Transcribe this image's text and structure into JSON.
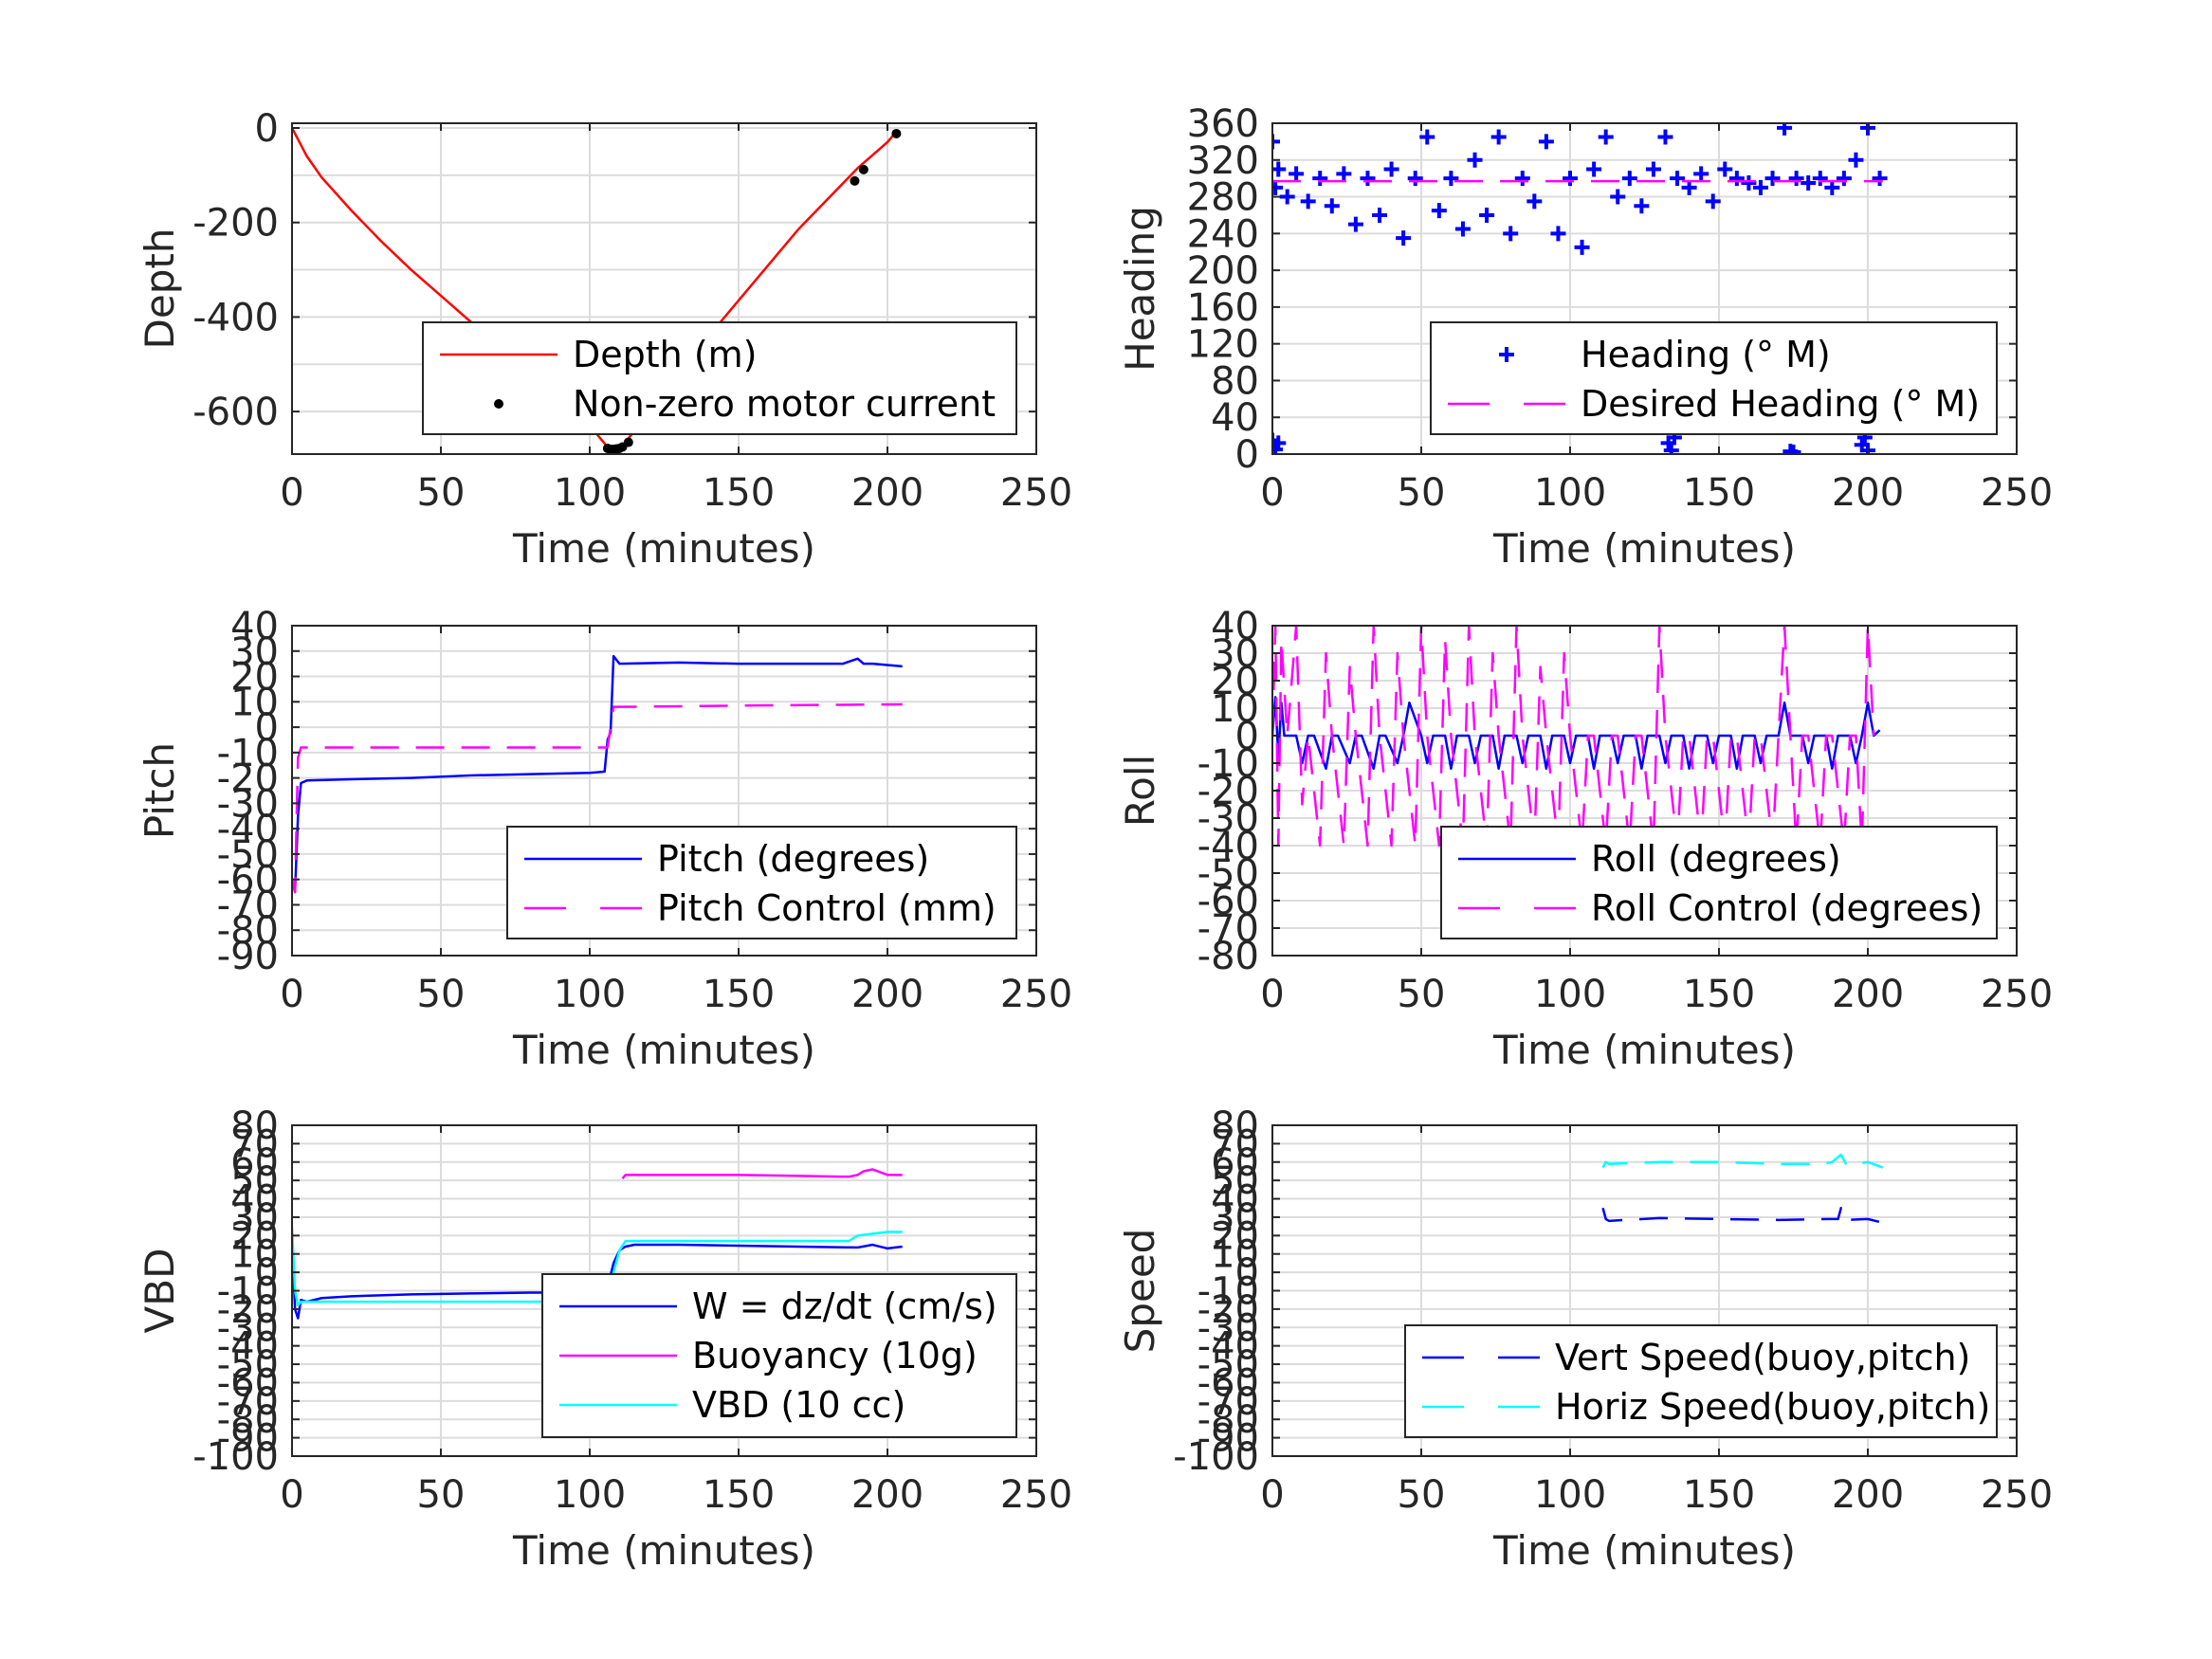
{
  "chart_data": [
    {
      "id": "depth",
      "type": "line",
      "xlabel": "Time (minutes)",
      "ylabel": "Depth",
      "xlim": [
        0,
        250
      ],
      "ylim": [
        -690,
        10
      ],
      "xticks": [
        0,
        50,
        100,
        150,
        200,
        250
      ],
      "yticks": [
        0,
        -200,
        -400,
        -600
      ],
      "ygrid": [
        0,
        -100,
        -200,
        -300,
        -400,
        -500,
        -600
      ],
      "legend_placement": "lower-right",
      "series": [
        {
          "name": "Depth (m)",
          "style": "line",
          "color": "#ff0000",
          "x": [
            0,
            5,
            10,
            20,
            30,
            40,
            50,
            60,
            70,
            80,
            90,
            100,
            106,
            108,
            110,
            112,
            120,
            130,
            140,
            150,
            160,
            170,
            180,
            190,
            200,
            203
          ],
          "y": [
            0,
            -60,
            -105,
            -175,
            -240,
            -300,
            -355,
            -410,
            -460,
            -515,
            -570,
            -630,
            -675,
            -680,
            -678,
            -665,
            -600,
            -515,
            -440,
            -365,
            -290,
            -215,
            -150,
            -85,
            -30,
            -8
          ]
        },
        {
          "name": "Non-zero motor current",
          "style": "dots",
          "color": "#000000",
          "x": [
            106,
            107,
            108,
            109,
            110,
            111,
            113,
            189,
            192,
            203
          ],
          "y": [
            -678,
            -680,
            -680,
            -679,
            -678,
            -675,
            -665,
            -112,
            -88,
            -12
          ]
        }
      ]
    },
    {
      "id": "heading",
      "type": "scatter",
      "xlabel": "Time (minutes)",
      "ylabel": "Heading",
      "xlim": [
        0,
        250
      ],
      "ylim": [
        0,
        360
      ],
      "xticks": [
        0,
        50,
        100,
        150,
        200,
        250
      ],
      "yticks": [
        0,
        40,
        80,
        120,
        160,
        200,
        240,
        280,
        320,
        360
      ],
      "ygrid": [
        0,
        40,
        80,
        120,
        160,
        200,
        240,
        280,
        320,
        360
      ],
      "legend_placement": "lower-right",
      "series": [
        {
          "name": "Heading (° M)",
          "style": "plus",
          "color": "#0000ff",
          "x": [
            0,
            1,
            2,
            5,
            8,
            12,
            16,
            20,
            24,
            28,
            32,
            36,
            40,
            44,
            48,
            52,
            56,
            60,
            64,
            68,
            72,
            76,
            80,
            84,
            88,
            92,
            96,
            100,
            104,
            108,
            112,
            116,
            120,
            124,
            128,
            132,
            136,
            140,
            144,
            148,
            152,
            156,
            160,
            164,
            168,
            172,
            176,
            180,
            184,
            188,
            192,
            196,
            200,
            204
          ],
          "y": [
            340,
            290,
            310,
            280,
            305,
            275,
            300,
            270,
            305,
            250,
            300,
            260,
            310,
            235,
            300,
            345,
            265,
            300,
            245,
            320,
            260,
            345,
            240,
            300,
            275,
            340,
            240,
            300,
            225,
            310,
            345,
            280,
            300,
            270,
            310,
            345,
            300,
            290,
            305,
            275,
            310,
            300,
            295,
            290,
            300,
            355,
            300,
            295,
            300,
            290,
            300,
            320,
            355,
            300
          ]
        },
        {
          "name": "",
          "style": "plus",
          "color": "#0000ff",
          "x": [
            0,
            1,
            2,
            133,
            134,
            135,
            174,
            175,
            198,
            199,
            200
          ],
          "y": [
            15,
            5,
            12,
            12,
            4,
            18,
            3,
            2,
            10,
            18,
            4
          ]
        },
        {
          "name": "Desired Heading (° M)",
          "style": "dash",
          "color": "#ff00ff",
          "x": [
            0,
            205
          ],
          "y": [
            297,
            297
          ]
        }
      ]
    },
    {
      "id": "pitch",
      "type": "line",
      "xlabel": "Time (minutes)",
      "ylabel": "Pitch",
      "xlim": [
        0,
        250
      ],
      "ylim": [
        -90,
        40
      ],
      "xticks": [
        0,
        50,
        100,
        150,
        200,
        250
      ],
      "yticks": [
        40,
        30,
        20,
        10,
        0,
        -10,
        -20,
        -30,
        -40,
        -50,
        -60,
        -70,
        -80,
        -90
      ],
      "ygrid": [
        40,
        30,
        20,
        10,
        0,
        -10,
        -20,
        -30,
        -40,
        -50,
        -60,
        -70,
        -80,
        -90
      ],
      "legend_placement": "lower-right",
      "series": [
        {
          "name": "Pitch (degrees)",
          "style": "line",
          "color": "#0000ff",
          "x": [
            0,
            1,
            2,
            3,
            5,
            20,
            40,
            60,
            80,
            100,
            105,
            106,
            107,
            108,
            110,
            130,
            150,
            170,
            185,
            190,
            192,
            195,
            205
          ],
          "y": [
            -60,
            -65,
            -35,
            -22,
            -21,
            -20.5,
            -20,
            -19,
            -18.5,
            -18,
            -17.5,
            -5,
            -2,
            28,
            25,
            25.5,
            25,
            25,
            25,
            27,
            25,
            25,
            24
          ]
        },
        {
          "name": "Pitch Control (mm)",
          "style": "dash",
          "color": "#ff00ff",
          "x": [
            0,
            1,
            2,
            3,
            20,
            60,
            106,
            107,
            108,
            110,
            150,
            205
          ],
          "y": [
            -60,
            -65,
            -12,
            -8,
            -8,
            -8,
            -8,
            0,
            8,
            8,
            8.5,
            9
          ]
        }
      ]
    },
    {
      "id": "roll",
      "type": "line",
      "xlabel": "Time (minutes)",
      "ylabel": "Roll",
      "xlim": [
        0,
        250
      ],
      "ylim": [
        -80,
        40
      ],
      "xticks": [
        0,
        50,
        100,
        150,
        200,
        250
      ],
      "yticks": [
        40,
        30,
        20,
        10,
        0,
        -10,
        -20,
        -30,
        -40,
        -50,
        -60,
        -70,
        -80
      ],
      "ygrid": [
        40,
        30,
        20,
        10,
        0,
        -10,
        -20,
        -30,
        -40,
        -50,
        -60,
        -70,
        -80
      ],
      "legend_placement": "lower-right",
      "series": [
        {
          "name": "Roll (degrees)",
          "style": "line",
          "color": "#0000ff",
          "x": [
            0,
            1,
            2,
            3,
            4,
            5,
            8,
            10,
            12,
            14,
            18,
            20,
            22,
            26,
            28,
            30,
            34,
            36,
            38,
            42,
            44,
            46,
            50,
            52,
            54,
            58,
            60,
            62,
            66,
            68,
            70,
            74,
            76,
            78,
            82,
            84,
            86,
            90,
            92,
            94,
            98,
            100,
            102,
            106,
            108,
            110,
            114,
            116,
            118,
            122,
            124,
            126,
            130,
            132,
            134,
            138,
            140,
            142,
            146,
            148,
            150,
            154,
            156,
            158,
            162,
            164,
            166,
            170,
            172,
            174,
            178,
            180,
            182,
            186,
            188,
            190,
            194,
            196,
            198,
            200,
            202,
            204
          ],
          "y": [
            0,
            14,
            -8,
            12,
            0,
            0,
            0,
            -10,
            0,
            0,
            -12,
            0,
            0,
            -10,
            0,
            0,
            -12,
            0,
            0,
            -10,
            0,
            12,
            0,
            -10,
            0,
            0,
            -12,
            0,
            0,
            -10,
            0,
            0,
            -12,
            0,
            0,
            -10,
            0,
            0,
            -12,
            0,
            0,
            -10,
            0,
            0,
            -12,
            0,
            0,
            -10,
            0,
            0,
            -12,
            0,
            0,
            -10,
            0,
            0,
            -12,
            0,
            0,
            -10,
            0,
            0,
            -12,
            0,
            0,
            -10,
            0,
            0,
            12,
            0,
            0,
            -10,
            0,
            0,
            -12,
            0,
            0,
            -10,
            0,
            12,
            0,
            2
          ]
        },
        {
          "name": "Roll Control (degrees)",
          "style": "dash",
          "color": "#ff00ff",
          "x": [
            0,
            1,
            2,
            3,
            5,
            8,
            10,
            12,
            16,
            18,
            20,
            24,
            26,
            28,
            32,
            34,
            36,
            40,
            42,
            44,
            48,
            50,
            52,
            56,
            58,
            60,
            64,
            66,
            68,
            72,
            74,
            76,
            80,
            82,
            84,
            88,
            90,
            92,
            96,
            98,
            100,
            104,
            106,
            108,
            112,
            114,
            116,
            120,
            122,
            124,
            128,
            130,
            132,
            136,
            138,
            140,
            144,
            146,
            148,
            152,
            154,
            156,
            160,
            162,
            164,
            168,
            170,
            172,
            176,
            178,
            180,
            184,
            186,
            188,
            192,
            194,
            196,
            198,
            200,
            202
          ],
          "y": [
            0,
            40,
            -40,
            35,
            0,
            40,
            -25,
            0,
            -40,
            30,
            0,
            -40,
            25,
            0,
            -40,
            40,
            0,
            -40,
            30,
            0,
            -40,
            40,
            0,
            -40,
            35,
            0,
            -40,
            40,
            0,
            -40,
            30,
            0,
            -40,
            40,
            0,
            -40,
            25,
            0,
            -40,
            30,
            0,
            -40,
            0,
            0,
            -40,
            0,
            0,
            -40,
            0,
            0,
            -40,
            40,
            0,
            -40,
            0,
            0,
            -40,
            0,
            0,
            -40,
            0,
            0,
            -40,
            0,
            0,
            -40,
            0,
            40,
            -40,
            0,
            0,
            -40,
            0,
            0,
            -40,
            0,
            0,
            -40,
            40,
            0
          ]
        }
      ]
    },
    {
      "id": "vbd",
      "type": "line",
      "xlabel": "Time (minutes)",
      "ylabel": "VBD",
      "xlim": [
        0,
        250
      ],
      "ylim": [
        -100,
        80
      ],
      "xticks": [
        0,
        50,
        100,
        150,
        200,
        250
      ],
      "yticks": [
        80,
        70,
        60,
        50,
        40,
        30,
        20,
        10,
        0,
        -10,
        -20,
        -30,
        -40,
        -50,
        -60,
        -70,
        -80,
        -90,
        -100
      ],
      "ygrid": [
        80,
        70,
        60,
        50,
        40,
        30,
        20,
        10,
        0,
        -10,
        -20,
        -30,
        -40,
        -50,
        -60,
        -70,
        -80,
        -90,
        -100
      ],
      "legend_placement": "lower-right",
      "series": [
        {
          "name": "W = dz/dt (cm/s)",
          "style": "line",
          "color": "#0000ff",
          "x": [
            0,
            1,
            2,
            3,
            5,
            10,
            20,
            40,
            60,
            80,
            100,
            104,
            106,
            108,
            110,
            112,
            115,
            130,
            150,
            170,
            190,
            195,
            200,
            205
          ],
          "y": [
            20,
            -20,
            -25,
            -15,
            -16,
            -14,
            -13,
            -12,
            -11.5,
            -11,
            -11,
            -10,
            -8,
            5,
            12,
            14,
            15,
            15,
            14.5,
            14,
            13.5,
            15,
            13,
            14
          ]
        },
        {
          "name": "Buoyancy (10g)",
          "style": "line",
          "color": "#ff00ff",
          "x": [
            111,
            112,
            130,
            150,
            170,
            187,
            190,
            192,
            195,
            200,
            205
          ],
          "y": [
            51,
            53,
            53,
            53,
            52.5,
            52,
            53,
            55,
            56,
            53,
            53
          ]
        },
        {
          "name": "VBD (10 cc)",
          "style": "line",
          "color": "#00ffff",
          "x": [
            0,
            1,
            2,
            3,
            5,
            20,
            40,
            60,
            80,
            100,
            105,
            107,
            108,
            110,
            112,
            120,
            150,
            170,
            187,
            190,
            195,
            200,
            205
          ],
          "y": [
            25,
            -10,
            -18,
            -16,
            -16,
            -16,
            -16,
            -16,
            -16,
            -16,
            -16,
            -10,
            0,
            12,
            17,
            17,
            17,
            17,
            17,
            20,
            21,
            22,
            22
          ]
        }
      ]
    },
    {
      "id": "speed",
      "type": "line",
      "xlabel": "Time (minutes)",
      "ylabel": "Speed",
      "xlim": [
        0,
        250
      ],
      "ylim": [
        -100,
        80
      ],
      "xticks": [
        0,
        50,
        100,
        150,
        200,
        250
      ],
      "yticks": [
        80,
        70,
        60,
        50,
        40,
        30,
        20,
        10,
        0,
        -10,
        -20,
        -30,
        -40,
        -50,
        -60,
        -70,
        -80,
        -90,
        -100
      ],
      "ygrid": [
        80,
        70,
        60,
        50,
        40,
        30,
        20,
        10,
        0,
        -10,
        -20,
        -30,
        -40,
        -50,
        -60,
        -70,
        -80,
        -90,
        -100
      ],
      "legend_placement": "lower-right",
      "series": [
        {
          "name": "Vert Speed(buoy,pitch)",
          "style": "dash",
          "color": "#0000ff",
          "x": [
            111,
            112,
            113,
            130,
            150,
            170,
            187,
            190,
            191,
            193,
            200,
            205
          ],
          "y": [
            35,
            29,
            28,
            29.5,
            29,
            28.5,
            29,
            29,
            35,
            28.5,
            29,
            27
          ]
        },
        {
          "name": "Horiz Speed(buoy,pitch)",
          "style": "dash",
          "color": "#00ffff",
          "x": [
            111,
            112,
            113,
            130,
            150,
            170,
            185,
            188,
            191,
            193,
            200,
            205
          ],
          "y": [
            57,
            60,
            59,
            60,
            60,
            59,
            59,
            60,
            64,
            58,
            60,
            57
          ]
        }
      ]
    }
  ]
}
